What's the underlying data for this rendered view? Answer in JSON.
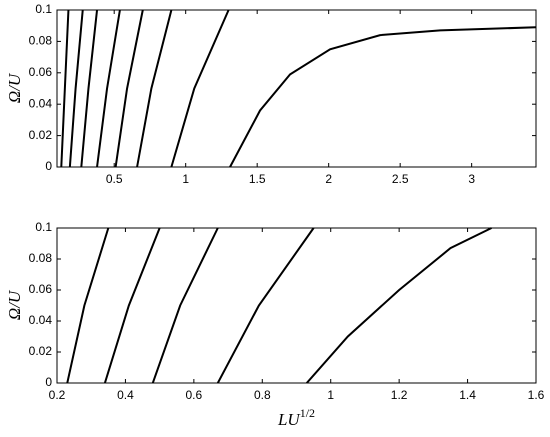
{
  "chart_data": [
    {
      "type": "line",
      "ylabel": "Ω/U",
      "xlim": [
        0.1,
        3.45
      ],
      "ylim": [
        0,
        0.1
      ],
      "xticks": [
        0.5,
        1,
        1.5,
        2,
        2.5,
        3
      ],
      "yticks": [
        0,
        0.02,
        0.04,
        0.06,
        0.08,
        0.1
      ],
      "series": [
        {
          "color": "#000000",
          "x": [
            0.13,
            0.155,
            0.18
          ],
          "values": [
            0,
            0.05,
            0.1
          ]
        },
        {
          "color": "#000000",
          "x": [
            0.19,
            0.23,
            0.28
          ],
          "values": [
            0,
            0.05,
            0.1
          ]
        },
        {
          "color": "#000000",
          "x": [
            0.27,
            0.32,
            0.38
          ],
          "values": [
            0,
            0.05,
            0.1
          ]
        },
        {
          "color": "#000000",
          "x": [
            0.38,
            0.45,
            0.54
          ],
          "values": [
            0,
            0.05,
            0.1
          ]
        },
        {
          "color": "#000000",
          "x": [
            0.51,
            0.59,
            0.7
          ],
          "values": [
            0,
            0.05,
            0.1
          ]
        },
        {
          "color": "#000000",
          "x": [
            0.66,
            0.76,
            0.9
          ],
          "values": [
            0,
            0.05,
            0.1
          ]
        },
        {
          "color": "#000000",
          "x": [
            0.9,
            1.06,
            1.3
          ],
          "values": [
            0,
            0.05,
            0.1
          ]
        },
        {
          "color": "#000000",
          "x": [
            1.31,
            1.52,
            1.73,
            2.01,
            2.36,
            2.78,
            3.45
          ],
          "values": [
            0,
            0.036,
            0.059,
            0.075,
            0.084,
            0.087,
            0.089
          ]
        }
      ]
    },
    {
      "type": "line",
      "ylabel": "Ω/U",
      "xlabel": "LU",
      "xlabel_sup": "1/2",
      "xlim": [
        0.2,
        1.6
      ],
      "ylim": [
        0,
        0.1
      ],
      "xticks": [
        0.2,
        0.4,
        0.6,
        0.8,
        1,
        1.2,
        1.4,
        1.6
      ],
      "yticks": [
        0,
        0.02,
        0.04,
        0.06,
        0.08,
        0.1
      ],
      "series": [
        {
          "color": "#000000",
          "x": [
            0.23,
            0.28,
            0.35
          ],
          "values": [
            0,
            0.05,
            0.1
          ]
        },
        {
          "color": "#000000",
          "x": [
            0.34,
            0.41,
            0.5
          ],
          "values": [
            0,
            0.05,
            0.1
          ]
        },
        {
          "color": "#000000",
          "x": [
            0.48,
            0.56,
            0.67
          ],
          "values": [
            0,
            0.05,
            0.1
          ]
        },
        {
          "color": "#000000",
          "x": [
            0.67,
            0.79,
            0.95
          ],
          "values": [
            0,
            0.05,
            0.1
          ]
        },
        {
          "color": "#000000",
          "x": [
            0.93,
            1.05,
            1.2,
            1.35,
            1.47
          ],
          "values": [
            0,
            0.03,
            0.06,
            0.087,
            0.1
          ]
        }
      ]
    }
  ]
}
